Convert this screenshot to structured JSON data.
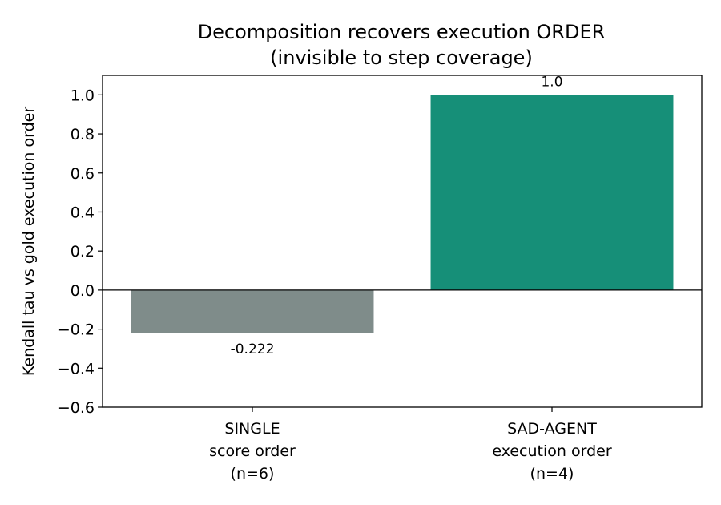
{
  "chart_data": {
    "type": "bar",
    "title_lines": [
      "Decomposition recovers execution ORDER",
      "(invisible to step coverage)"
    ],
    "xlabel": "",
    "ylabel": "Kendall tau vs gold execution order",
    "ylim": [
      -0.6,
      1.1
    ],
    "yticks": [
      -0.6,
      -0.4,
      -0.2,
      0.0,
      0.2,
      0.4,
      0.6,
      0.8,
      1.0
    ],
    "ytick_labels": [
      "−0.6",
      "−0.4",
      "−0.2",
      "0.0",
      "0.2",
      "0.4",
      "0.6",
      "0.8",
      "1.0"
    ],
    "categories": [
      [
        "SINGLE",
        "score order",
        "(n=6)"
      ],
      [
        "SAD-AGENT",
        "execution order",
        "(n=4)"
      ]
    ],
    "values": [
      -0.222,
      1.0
    ],
    "value_labels": [
      "-0.222",
      "1.0"
    ],
    "colors": [
      "#7f8c8a",
      "#168f78"
    ],
    "zero_line": true,
    "grid": false
  }
}
